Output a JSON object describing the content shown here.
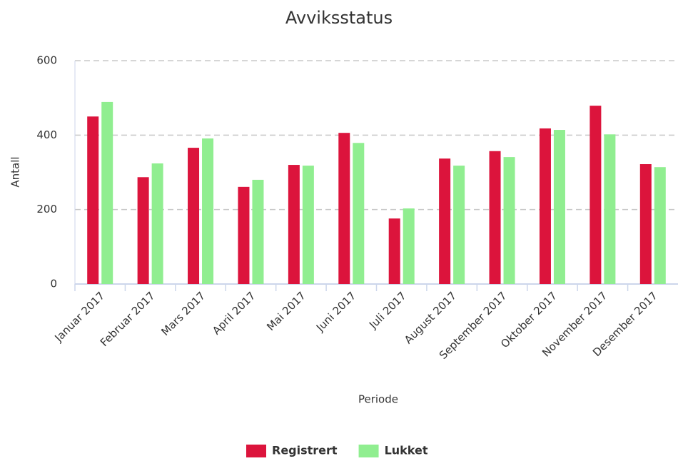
{
  "chart_data": {
    "type": "bar",
    "title": "Avviksstatus",
    "x_label": "Periode",
    "y_label": "Antall",
    "categories": [
      "Januar 2017",
      "Februar 2017",
      "Mars 2017",
      "April 2017",
      "Mai 2017",
      "Juni 2017",
      "Juli 2017",
      "August 2017",
      "September 2017",
      "Oktober 2017",
      "November 2017",
      "Desember 2017"
    ],
    "series": [
      {
        "name": "Registrert",
        "color": "#dc143c",
        "values": [
          450,
          287,
          366,
          261,
          320,
          406,
          176,
          337,
          357,
          418,
          479,
          322
        ]
      },
      {
        "name": "Lukket",
        "color": "#90ee90",
        "values": [
          489,
          324,
          391,
          280,
          318,
          379,
          203,
          318,
          341,
          414,
          402,
          314
        ]
      }
    ],
    "ylim": [
      0,
      600
    ],
    "yticks": [
      0,
      200,
      400,
      600
    ],
    "grid": true,
    "legend": "bottom"
  }
}
